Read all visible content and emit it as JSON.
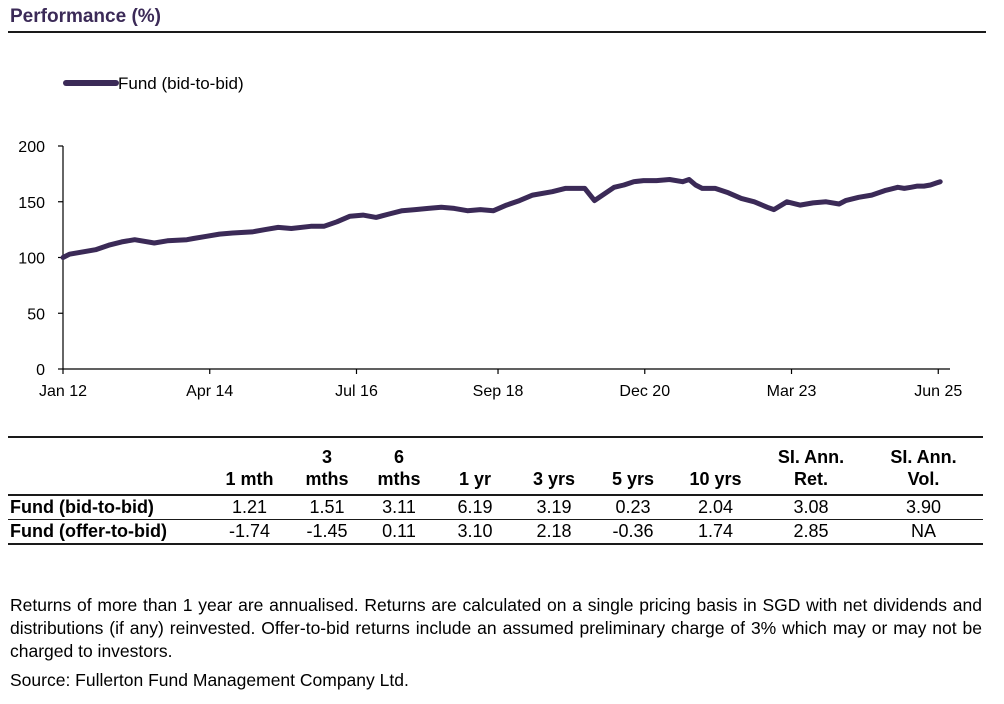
{
  "page": {
    "section_title": "Performance (%)",
    "footnote": "Returns of more than 1 year are annualised. Returns are calculated on a single pricing basis in SGD with net dividends and distributions (if any) reinvested. Offer-to-bid returns include an assumed preliminary charge of 3% which may or may not be charged to investors.",
    "source": "Source: Fullerton Fund Management Company Ltd."
  },
  "colors": {
    "line": "#3b2a57",
    "axis": "#000000",
    "rule": "#1a1a1a"
  },
  "chart_data": {
    "type": "line",
    "title": "",
    "xlabel": "",
    "ylabel": "",
    "ylim": [
      0,
      200
    ],
    "yticks": [
      0,
      50,
      100,
      150,
      200
    ],
    "xlim": [
      2012.0,
      2025.6
    ],
    "xticks": [
      {
        "label": "Jan 12",
        "x": 2012.0
      },
      {
        "label": "Apr 14",
        "x": 2014.25
      },
      {
        "label": "Jul 16",
        "x": 2016.5
      },
      {
        "label": "Sep 18",
        "x": 2018.67
      },
      {
        "label": "Dec 20",
        "x": 2020.92
      },
      {
        "label": "Mar 23",
        "x": 2023.17
      },
      {
        "label": "Jun 25",
        "x": 2025.42
      }
    ],
    "grid": false,
    "legend_position": "top-left",
    "series": [
      {
        "name": "Fund (bid-to-bid)",
        "x": [
          2012.0,
          2012.1,
          2012.3,
          2012.5,
          2012.7,
          2012.9,
          2013.1,
          2013.4,
          2013.6,
          2013.9,
          2014.0,
          2014.2,
          2014.4,
          2014.6,
          2014.9,
          2015.1,
          2015.3,
          2015.5,
          2015.8,
          2016.0,
          2016.2,
          2016.4,
          2016.6,
          2016.8,
          2017.0,
          2017.2,
          2017.4,
          2017.6,
          2017.8,
          2018.0,
          2018.2,
          2018.4,
          2018.6,
          2018.8,
          2019.0,
          2019.2,
          2019.5,
          2019.7,
          2020.0,
          2020.15,
          2020.3,
          2020.45,
          2020.6,
          2020.75,
          2020.9,
          2021.1,
          2021.3,
          2021.5,
          2021.6,
          2021.7,
          2021.8,
          2022.0,
          2022.2,
          2022.4,
          2022.6,
          2022.8,
          2022.9,
          2023.1,
          2023.3,
          2023.5,
          2023.7,
          2023.9,
          2024.0,
          2024.2,
          2024.4,
          2024.6,
          2024.8,
          2024.9,
          2025.0,
          2025.1,
          2025.2,
          2025.3,
          2025.4,
          2025.45
        ],
        "values": [
          100,
          103,
          105,
          107,
          111,
          114,
          116,
          113,
          115,
          116,
          117,
          119,
          121,
          122,
          123,
          125,
          127,
          126,
          128,
          128,
          132,
          137,
          138,
          136,
          139,
          142,
          143,
          144,
          145,
          144,
          142,
          143,
          142,
          147,
          151,
          156,
          159,
          162,
          162,
          151,
          157,
          163,
          165,
          168,
          169,
          169,
          170,
          168,
          170,
          165,
          162,
          162,
          158,
          153,
          150,
          145,
          143,
          150,
          147,
          149,
          150,
          148,
          151,
          154,
          156,
          160,
          163,
          162,
          163,
          164,
          164,
          165,
          167,
          168
        ]
      }
    ]
  },
  "table": {
    "columns": [
      "",
      "1 mth",
      "3 mths",
      "6 mths",
      "1 yr",
      "3 yrs",
      "5 yrs",
      "10 yrs",
      "SI. Ann. Ret.",
      "SI. Ann. Vol."
    ],
    "rows": [
      {
        "label": "Fund (bid-to-bid)",
        "values": [
          "1.21",
          "1.51",
          "3.11",
          "6.19",
          "3.19",
          "0.23",
          "2.04",
          "3.08",
          "3.90"
        ]
      },
      {
        "label": "Fund (offer-to-bid)",
        "values": [
          "-1.74",
          "-1.45",
          "0.11",
          "3.10",
          "2.18",
          "-0.36",
          "1.74",
          "2.85",
          "NA"
        ]
      }
    ]
  }
}
